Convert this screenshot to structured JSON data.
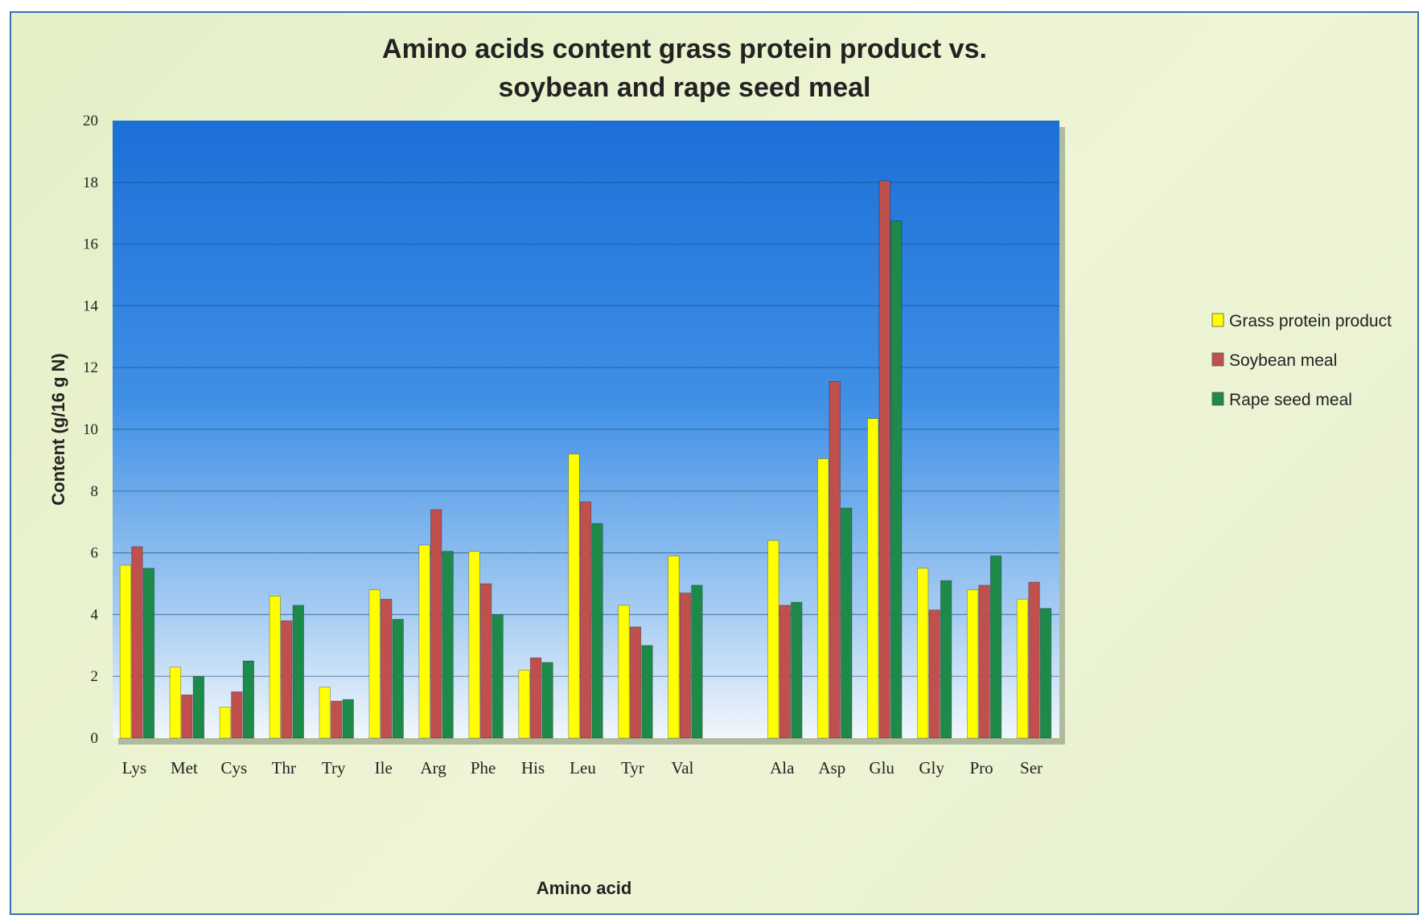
{
  "chart_data": {
    "type": "bar",
    "title_line1": "Amino acids content grass protein product  vs.",
    "title_line2": "soybean and rape seed meal",
    "xlabel": "Amino acid",
    "ylabel": "Content  (g/16 g N)",
    "ylim": [
      0,
      20
    ],
    "yticks": [
      0,
      2,
      4,
      6,
      8,
      10,
      12,
      14,
      16,
      18,
      20
    ],
    "grid": true,
    "legend_position": "right",
    "categories": [
      "Lys",
      "Met",
      "Cys",
      "Thr",
      "Try",
      "Ile",
      "Arg",
      "Phe",
      "His",
      "Leu",
      "Tyr",
      "Val",
      "",
      "Ala",
      "Asp",
      "Glu",
      "Gly",
      "Pro",
      "Ser"
    ],
    "series": [
      {
        "name": "Grass protein product",
        "color": "#ffff00",
        "values": [
          5.6,
          2.3,
          1.0,
          4.6,
          1.65,
          4.8,
          6.25,
          6.05,
          2.2,
          9.2,
          4.3,
          5.9,
          null,
          6.4,
          9.05,
          10.35,
          5.5,
          4.8,
          4.5
        ]
      },
      {
        "name": "Soybean meal",
        "color": "#c0504d",
        "values": [
          6.2,
          1.4,
          1.5,
          3.8,
          1.2,
          4.5,
          7.4,
          5.0,
          2.6,
          7.65,
          3.6,
          4.7,
          null,
          4.3,
          11.55,
          18.05,
          4.15,
          4.95,
          5.05
        ]
      },
      {
        "name": "Rape seed meal",
        "color": "#1e8a4a",
        "values": [
          5.5,
          2.0,
          2.5,
          4.3,
          1.25,
          3.85,
          6.05,
          4.0,
          2.45,
          6.95,
          3.0,
          4.95,
          null,
          4.4,
          7.45,
          16.75,
          5.1,
          5.9,
          4.2
        ]
      }
    ]
  }
}
